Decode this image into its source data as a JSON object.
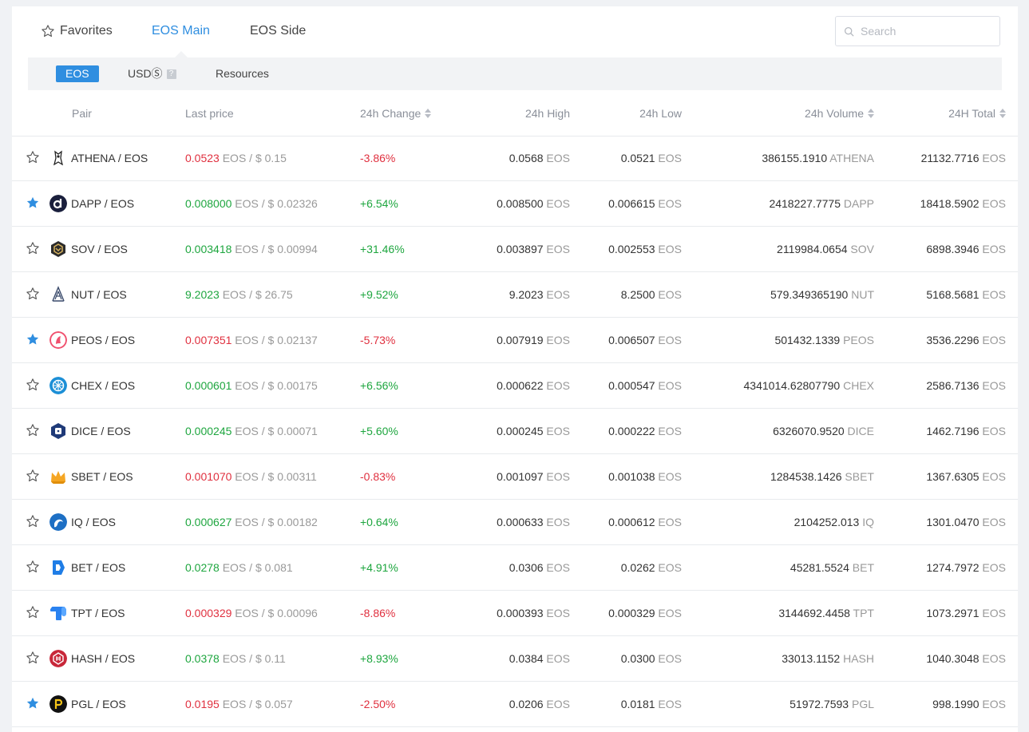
{
  "tabs": {
    "favorites": "Favorites",
    "eos_main": "EOS Main",
    "eos_side": "EOS Side"
  },
  "search": {
    "placeholder": "Search"
  },
  "subtabs": {
    "eos": "EOS",
    "usd": "USDⓈ",
    "resources": "Resources",
    "usd_help": "?"
  },
  "columns": {
    "pair": "Pair",
    "last_price": "Last price",
    "change": "24h Change",
    "high": "24h High",
    "low": "24h Low",
    "volume": "24h Volume",
    "total": "24H Total"
  },
  "colors": {
    "accent": "#2f8ee0",
    "up": "#1ea63f",
    "down": "#e0303f"
  },
  "rows": [
    {
      "favorite": false,
      "icon": "athena-logo-icon",
      "logo_color": "#ffffff",
      "pair": "ATHENA / EOS",
      "trend": "down",
      "price": "0.0523",
      "price_unit": "EOS / $ 0.15",
      "change": "-3.86%",
      "high": "0.0568",
      "high_unit": "EOS",
      "low": "0.0521",
      "low_unit": "EOS",
      "volume": "386155.1910",
      "volume_unit": "ATHENA",
      "total": "21132.7716",
      "total_unit": "EOS"
    },
    {
      "favorite": true,
      "icon": "dapp-logo-icon",
      "logo_color": "#1a1f3c",
      "pair": "DAPP / EOS",
      "trend": "up",
      "price": "0.008000",
      "price_unit": "EOS / $ 0.02326",
      "change": "+6.54%",
      "high": "0.008500",
      "high_unit": "EOS",
      "low": "0.006615",
      "low_unit": "EOS",
      "volume": "2418227.7775",
      "volume_unit": "DAPP",
      "total": "18418.5902",
      "total_unit": "EOS"
    },
    {
      "favorite": false,
      "icon": "sov-logo-icon",
      "logo_color": "#2b2b2b",
      "pair": "SOV / EOS",
      "trend": "up",
      "price": "0.003418",
      "price_unit": "EOS / $ 0.00994",
      "change": "+31.46%",
      "high": "0.003897",
      "high_unit": "EOS",
      "low": "0.002553",
      "low_unit": "EOS",
      "volume": "2119984.0654",
      "volume_unit": "SOV",
      "total": "6898.3946",
      "total_unit": "EOS"
    },
    {
      "favorite": false,
      "icon": "nut-logo-icon",
      "logo_color": "#ffffff",
      "pair": "NUT / EOS",
      "trend": "up",
      "price": "9.2023",
      "price_unit": "EOS / $ 26.75",
      "change": "+9.52%",
      "high": "9.2023",
      "high_unit": "EOS",
      "low": "8.2500",
      "low_unit": "EOS",
      "volume": "579.349365190",
      "volume_unit": "NUT",
      "total": "5168.5681",
      "total_unit": "EOS"
    },
    {
      "favorite": true,
      "icon": "peos-logo-icon",
      "logo_color": "#f0506e",
      "pair": "PEOS / EOS",
      "trend": "down",
      "price": "0.007351",
      "price_unit": "EOS / $ 0.02137",
      "change": "-5.73%",
      "high": "0.007919",
      "high_unit": "EOS",
      "low": "0.006507",
      "low_unit": "EOS",
      "volume": "501432.1339",
      "volume_unit": "PEOS",
      "total": "3536.2296",
      "total_unit": "EOS"
    },
    {
      "favorite": false,
      "icon": "chex-logo-icon",
      "logo_color": "#1c8fd6",
      "pair": "CHEX / EOS",
      "trend": "up",
      "price": "0.000601",
      "price_unit": "EOS / $ 0.00175",
      "change": "+6.56%",
      "high": "0.000622",
      "high_unit": "EOS",
      "low": "0.000547",
      "low_unit": "EOS",
      "volume": "4341014.62807790",
      "volume_unit": "CHEX",
      "total": "2586.7136",
      "total_unit": "EOS"
    },
    {
      "favorite": false,
      "icon": "dice-logo-icon",
      "logo_color": "#1f3a78",
      "pair": "DICE / EOS",
      "trend": "up",
      "price": "0.000245",
      "price_unit": "EOS / $ 0.00071",
      "change": "+5.60%",
      "high": "0.000245",
      "high_unit": "EOS",
      "low": "0.000222",
      "low_unit": "EOS",
      "volume": "6326070.9520",
      "volume_unit": "DICE",
      "total": "1462.7196",
      "total_unit": "EOS"
    },
    {
      "favorite": false,
      "icon": "sbet-crown-icon",
      "logo_color": "#f5a623",
      "pair": "SBET / EOS",
      "trend": "down",
      "price": "0.001070",
      "price_unit": "EOS / $ 0.00311",
      "change": "-0.83%",
      "high": "0.001097",
      "high_unit": "EOS",
      "low": "0.001038",
      "low_unit": "EOS",
      "volume": "1284538.1426",
      "volume_unit": "SBET",
      "total": "1367.6305",
      "total_unit": "EOS"
    },
    {
      "favorite": false,
      "icon": "iq-logo-icon",
      "logo_color": "#1d6fc4",
      "pair": "IQ / EOS",
      "trend": "up",
      "price": "0.000627",
      "price_unit": "EOS / $ 0.00182",
      "change": "+0.64%",
      "high": "0.000633",
      "high_unit": "EOS",
      "low": "0.000612",
      "low_unit": "EOS",
      "volume": "2104252.013",
      "volume_unit": "IQ",
      "total": "1301.0470",
      "total_unit": "EOS"
    },
    {
      "favorite": false,
      "icon": "bet-logo-icon",
      "logo_color": "#1f7de6",
      "pair": "BET / EOS",
      "trend": "up",
      "price": "0.0278",
      "price_unit": "EOS / $ 0.081",
      "change": "+4.91%",
      "high": "0.0306",
      "high_unit": "EOS",
      "low": "0.0262",
      "low_unit": "EOS",
      "volume": "45281.5524",
      "volume_unit": "BET",
      "total": "1274.7972",
      "total_unit": "EOS"
    },
    {
      "favorite": false,
      "icon": "tpt-logo-icon",
      "logo_color": "#2a82f0",
      "pair": "TPT / EOS",
      "trend": "down",
      "price": "0.000329",
      "price_unit": "EOS / $ 0.00096",
      "change": "-8.86%",
      "high": "0.000393",
      "high_unit": "EOS",
      "low": "0.000329",
      "low_unit": "EOS",
      "volume": "3144692.4458",
      "volume_unit": "TPT",
      "total": "1073.2971",
      "total_unit": "EOS"
    },
    {
      "favorite": false,
      "icon": "hash-logo-icon",
      "logo_color": "#c8283a",
      "pair": "HASH / EOS",
      "trend": "up",
      "price": "0.0378",
      "price_unit": "EOS / $ 0.11",
      "change": "+8.93%",
      "high": "0.0384",
      "high_unit": "EOS",
      "low": "0.0300",
      "low_unit": "EOS",
      "volume": "33013.1152",
      "volume_unit": "HASH",
      "total": "1040.3048",
      "total_unit": "EOS"
    },
    {
      "favorite": true,
      "icon": "pgl-logo-icon",
      "logo_color": "#111111",
      "pair": "PGL / EOS",
      "trend": "down",
      "price": "0.0195",
      "price_unit": "EOS / $ 0.057",
      "change": "-2.50%",
      "high": "0.0206",
      "high_unit": "EOS",
      "low": "0.0181",
      "low_unit": "EOS",
      "volume": "51972.7593",
      "volume_unit": "PGL",
      "total": "998.1990",
      "total_unit": "EOS"
    }
  ]
}
